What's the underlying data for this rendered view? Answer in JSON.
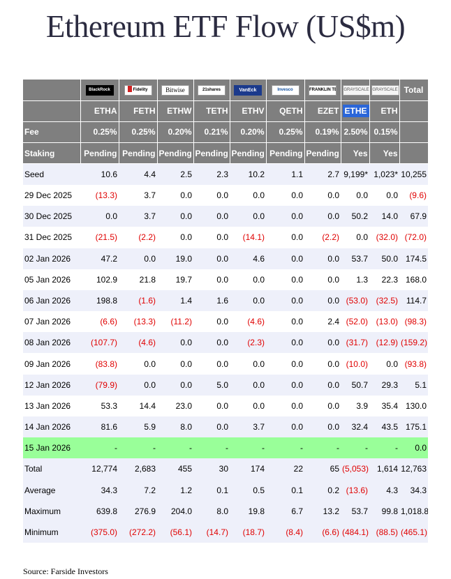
{
  "title": "Ethereum ETF Flow (US$m)",
  "source": "Source: Farside Investors",
  "issuers": [
    {
      "label": "BlackRock",
      "icon": "blackrock-logo"
    },
    {
      "label": "Fidelity",
      "icon": "fidelity-logo"
    },
    {
      "label": "Bitwise",
      "icon": "bitwise-logo"
    },
    {
      "label": "21shares",
      "icon": "21shares-logo"
    },
    {
      "label": "VanEck",
      "icon": "vaneck-logo"
    },
    {
      "label": "Invesco",
      "icon": "invesco-logo"
    },
    {
      "label": "FRANKLIN TEMPLETON",
      "icon": "franklin-templeton-logo"
    },
    {
      "label": "GRAYSCALE",
      "icon": "grayscale-logo"
    },
    {
      "label": "GRAYSCALE",
      "icon": "grayscale-logo"
    }
  ],
  "total_header": "Total",
  "tickers": [
    "ETHA",
    "FETH",
    "ETHW",
    "TETH",
    "ETHV",
    "QETH",
    "EZET",
    "ETHE",
    "ETH"
  ],
  "fee_label": "Fee",
  "fees": [
    "0.25%",
    "0.25%",
    "0.20%",
    "0.21%",
    "0.20%",
    "0.25%",
    "0.19%",
    "2.50%",
    "0.15%"
  ],
  "staking_label": "Staking",
  "staking": [
    "Pending",
    "Pending",
    "Pending",
    "Pending",
    "Pending",
    "Pending",
    "Pending",
    "Yes",
    "Yes"
  ],
  "rows": [
    {
      "label": "Seed",
      "values": [
        "10.6",
        "4.4",
        "2.5",
        "2.3",
        "10.2",
        "1.1",
        "2.7",
        "9,199*",
        "1,023*",
        "10,255"
      ]
    },
    {
      "label": "29 Dec 2025",
      "values": [
        "(13.3)",
        "3.7",
        "0.0",
        "0.0",
        "0.0",
        "0.0",
        "0.0",
        "0.0",
        "0.0",
        "(9.6)"
      ]
    },
    {
      "label": "30 Dec 2025",
      "values": [
        "0.0",
        "3.7",
        "0.0",
        "0.0",
        "0.0",
        "0.0",
        "0.0",
        "50.2",
        "14.0",
        "67.9"
      ]
    },
    {
      "label": "31 Dec 2025",
      "values": [
        "(21.5)",
        "(2.2)",
        "0.0",
        "0.0",
        "(14.1)",
        "0.0",
        "(2.2)",
        "0.0",
        "(32.0)",
        "(72.0)"
      ]
    },
    {
      "label": "02 Jan 2026",
      "values": [
        "47.2",
        "0.0",
        "19.0",
        "0.0",
        "4.6",
        "0.0",
        "0.0",
        "53.7",
        "50.0",
        "174.5"
      ]
    },
    {
      "label": "05 Jan 2026",
      "values": [
        "102.9",
        "21.8",
        "19.7",
        "0.0",
        "0.0",
        "0.0",
        "0.0",
        "1.3",
        "22.3",
        "168.0"
      ]
    },
    {
      "label": "06 Jan 2026",
      "values": [
        "198.8",
        "(1.6)",
        "1.4",
        "1.6",
        "0.0",
        "0.0",
        "0.0",
        "(53.0)",
        "(32.5)",
        "114.7"
      ]
    },
    {
      "label": "07 Jan 2026",
      "values": [
        "(6.6)",
        "(13.3)",
        "(11.2)",
        "0.0",
        "(4.6)",
        "0.0",
        "2.4",
        "(52.0)",
        "(13.0)",
        "(98.3)"
      ]
    },
    {
      "label": "08 Jan 2026",
      "values": [
        "(107.7)",
        "(4.6)",
        "0.0",
        "0.0",
        "(2.3)",
        "0.0",
        "0.0",
        "(31.7)",
        "(12.9)",
        "(159.2)"
      ]
    },
    {
      "label": "09 Jan 2026",
      "values": [
        "(83.8)",
        "0.0",
        "0.0",
        "0.0",
        "0.0",
        "0.0",
        "0.0",
        "(10.0)",
        "0.0",
        "(93.8)"
      ]
    },
    {
      "label": "12 Jan 2026",
      "values": [
        "(79.9)",
        "0.0",
        "0.0",
        "5.0",
        "0.0",
        "0.0",
        "0.0",
        "50.7",
        "29.3",
        "5.1"
      ]
    },
    {
      "label": "13 Jan 2026",
      "values": [
        "53.3",
        "14.4",
        "23.0",
        "0.0",
        "0.0",
        "0.0",
        "0.0",
        "3.9",
        "35.4",
        "130.0"
      ]
    },
    {
      "label": "14 Jan 2026",
      "values": [
        "81.6",
        "5.9",
        "8.0",
        "0.0",
        "3.7",
        "0.0",
        "0.0",
        "32.4",
        "43.5",
        "175.1"
      ]
    },
    {
      "label": "15 Jan 2026",
      "values": [
        "-",
        "-",
        "-",
        "-",
        "-",
        "-",
        "-",
        "-",
        "-",
        "0.0"
      ],
      "highlight": "#99ff99"
    }
  ],
  "summary": [
    {
      "label": "Total",
      "values": [
        "12,774",
        "2,683",
        "455",
        "30",
        "174",
        "22",
        "65",
        "(5,053)",
        "1,614",
        "12,763"
      ]
    },
    {
      "label": "Average",
      "values": [
        "34.3",
        "7.2",
        "1.2",
        "0.1",
        "0.5",
        "0.1",
        "0.2",
        "(13.6)",
        "4.3",
        "34.3"
      ]
    },
    {
      "label": "Maximum",
      "values": [
        "639.8",
        "276.9",
        "204.0",
        "8.0",
        "19.8",
        "6.7",
        "13.2",
        "53.7",
        "99.8",
        "1,018.8"
      ]
    },
    {
      "label": "Minimum",
      "values": [
        "(375.0)",
        "(272.2)",
        "(56.1)",
        "(14.7)",
        "(18.7)",
        "(8.4)",
        "(6.6)",
        "(484.1)",
        "(88.5)",
        "(465.1)"
      ]
    }
  ],
  "colors": {
    "header_bg": "#7f7f7f",
    "negative": "#e00000",
    "row_alt": "#eef0fa",
    "highlight_row": "#99ff99",
    "ethe_highlight": "#2a66d9"
  }
}
